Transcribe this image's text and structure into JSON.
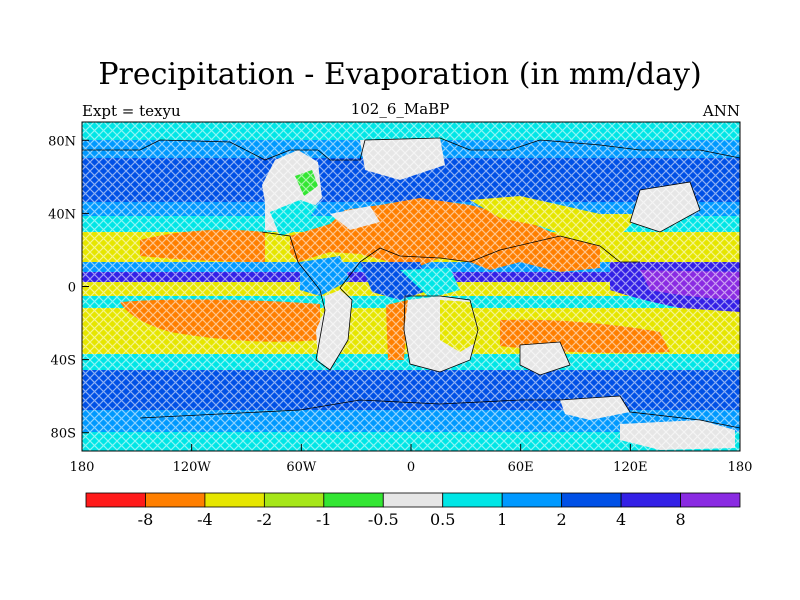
{
  "title": "Precipitation - Evaporation (in mm/day)",
  "subtitle_left": "Expt = texyu",
  "subtitle_center": "102_6_MaBP",
  "subtitle_right": "ANN",
  "map": {
    "lon_range": [
      -180,
      180
    ],
    "lat_range": [
      -90,
      90
    ],
    "lon_ticks": [
      {
        "value": -180,
        "label": "180"
      },
      {
        "value": -120,
        "label": "120W"
      },
      {
        "value": -60,
        "label": "60W"
      },
      {
        "value": 0,
        "label": "0"
      },
      {
        "value": 60,
        "label": "60E"
      },
      {
        "value": 120,
        "label": "120E"
      },
      {
        "value": 180,
        "label": "180"
      }
    ],
    "lat_ticks": [
      {
        "value": 80,
        "label": "80N"
      },
      {
        "value": 40,
        "label": "40N"
      },
      {
        "value": 0,
        "label": "0"
      },
      {
        "value": -40,
        "label": "40S"
      },
      {
        "value": -80,
        "label": "80S"
      }
    ]
  },
  "colorbar": {
    "colors": [
      "#ff1a1a",
      "#ff7f00",
      "#e6e600",
      "#a6e619",
      "#33e633",
      "#e6e6e6",
      "#00e6e6",
      "#0099ff",
      "#0050e6",
      "#3320e6",
      "#8a2be2"
    ],
    "labels": [
      "-8",
      "-4",
      "-2",
      "-1",
      "-0.5",
      "0.5",
      "1",
      "2",
      "4",
      "8"
    ]
  }
}
